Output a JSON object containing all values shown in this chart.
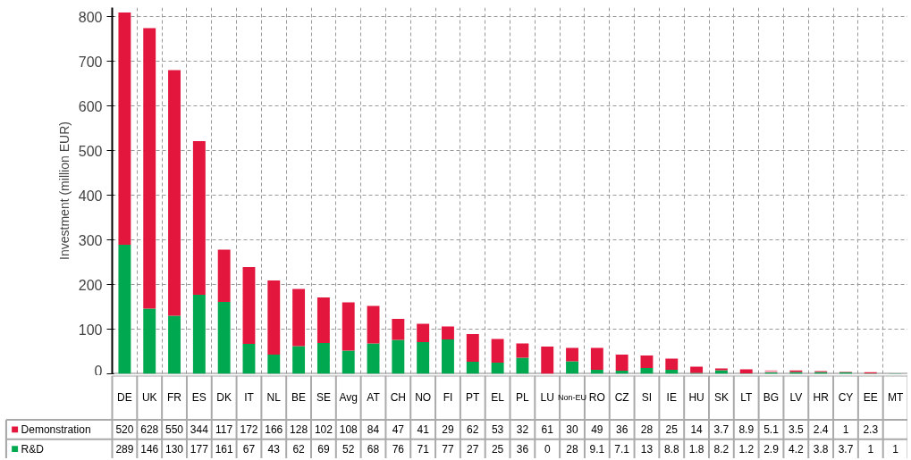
{
  "chart_data": {
    "type": "bar",
    "stacked": true,
    "ylabel": "Investment (million EUR)",
    "categories": [
      "DE",
      "UK",
      "FR",
      "ES",
      "DK",
      "IT",
      "NL",
      "BE",
      "SE",
      "Avg",
      "AT",
      "CH",
      "NO",
      "FI",
      "PT",
      "EL",
      "PL",
      "LU",
      "Non-EU",
      "RO",
      "CZ",
      "SI",
      "IE",
      "HU",
      "SK",
      "LT",
      "BG",
      "LV",
      "HR",
      "CY",
      "EE",
      "MT"
    ],
    "series": [
      {
        "name": "R&D",
        "color": "#00a84f",
        "values": [
          289,
          146,
          130,
          177,
          161,
          67,
          43,
          62,
          69,
          52,
          68,
          76,
          71,
          77,
          27,
          25,
          36,
          0,
          28,
          9.1,
          7.1,
          13,
          8.8,
          1.8,
          8.2,
          1.2,
          2.9,
          4.2,
          3.8,
          3.7,
          1,
          1
        ]
      },
      {
        "name": "Demonstration",
        "color": "#e3173e",
        "colors": [
          "#e3173e",
          "#e3173e",
          "#e3173e",
          "#e3173e",
          "#e3173e",
          "#e3173e",
          "#e3173e",
          "#e3173e",
          "#e3173e",
          "#e3173e",
          "#e3173e",
          "#e3173e",
          "#e3173e",
          "#e3173e",
          "#e3173e",
          "#e3173e",
          "#e3173e",
          "#e3173e",
          "#e3173e",
          "#e3173e",
          "#e3173e",
          "#e3173e",
          "#e3173e",
          "#e3173e",
          "#e3173e",
          "#e3173e",
          "#f5a3b5",
          "#e3173e",
          "#e3173e",
          "#e3173e",
          "#e3173e",
          "#e3173e"
        ],
        "values": [
          520,
          628,
          550,
          344,
          117,
          172,
          166,
          128,
          102,
          108,
          84,
          47,
          41,
          29,
          62,
          53,
          32,
          61,
          30,
          49,
          36,
          28,
          25,
          14,
          3.7,
          8.9,
          5.1,
          3.5,
          2.4,
          1,
          2.3,
          null
        ]
      }
    ],
    "ylim": [
      0,
      820
    ],
    "yticks": [
      0,
      100,
      200,
      300,
      400,
      500,
      600,
      700,
      800
    ],
    "grid": true,
    "legend": "bottom left",
    "data_labels": true
  }
}
